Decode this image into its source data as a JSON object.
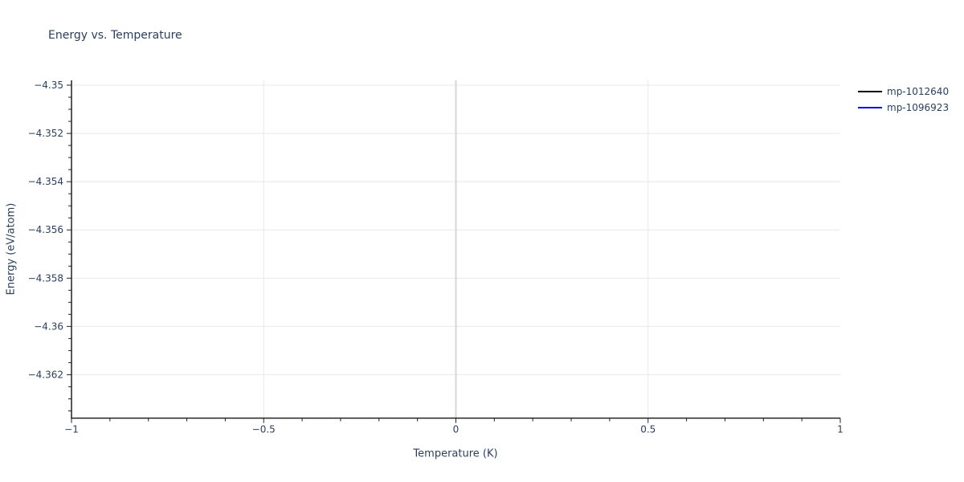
{
  "chart_data": {
    "type": "line",
    "title": "Energy vs. Temperature",
    "xlabel": "Temperature (K)",
    "ylabel": "Energy (eV/atom)",
    "xlim": [
      -1,
      1
    ],
    "ylim": [
      -4.3638,
      -4.3498
    ],
    "grid": true,
    "legend_position": "top-right-outside",
    "x_major_ticks": [
      -1,
      -0.5,
      0,
      0.5,
      1
    ],
    "x_major_tick_labels": [
      "−1",
      "−0.5",
      "0",
      "0.5",
      "1"
    ],
    "x_minor_tick_step": 0.1,
    "y_major_ticks": [
      -4.35,
      -4.352,
      -4.354,
      -4.356,
      -4.358,
      -4.36,
      -4.362
    ],
    "y_major_tick_labels": [
      "−4.35",
      "−4.352",
      "−4.354",
      "−4.356",
      "−4.358",
      "−4.36",
      "−4.362"
    ],
    "y_minor_tick_step": 0.0005,
    "x_gridlines": [
      -0.5,
      0.5
    ],
    "x_zeroline": 0,
    "series": [
      {
        "name": "mp-1012640",
        "color": "#000000",
        "x": [],
        "y": []
      },
      {
        "name": "mp-1096923",
        "color": "#0000ff",
        "x": [],
        "y": []
      }
    ],
    "colors": {
      "title_text": "#2a3f5f",
      "tick_text": "#2a3f5f",
      "axis_line": "#222222",
      "gridline": "#e8e8e8",
      "zeroline": "#d6d6d6",
      "background": "#ffffff"
    }
  }
}
